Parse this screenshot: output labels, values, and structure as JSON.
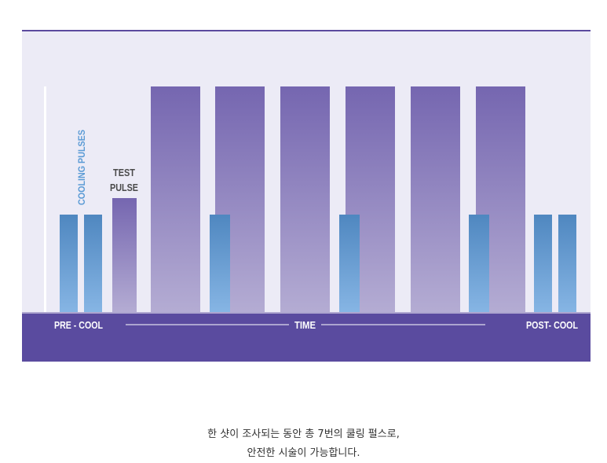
{
  "labels": {
    "cooling_pulses": "COOLING PULSES",
    "test_pulse_line1": "TEST",
    "test_pulse_line2": "PULSE",
    "pre_cool": "PRE - COOL",
    "time": "TIME",
    "post_cool": "POST- COOL"
  },
  "caption": {
    "line1": "한 샷이 조사되는 동안 총 7번의 쿨링 펄스로,",
    "line2": "안전한 시술이 가능합니다."
  },
  "colors": {
    "background_panel": "#ecebf6",
    "top_rule": "#5b4a9e",
    "baseline_band": "#5a4b9f",
    "laser_pulse_top": "#7566b0",
    "laser_pulse_bottom": "#b4acd3",
    "cooling_pulse_top": "#4f87c0",
    "cooling_pulse_bottom": "#86b5e4",
    "cooling_label": "#5b9bd5",
    "test_label": "#4a4a4a"
  }
}
